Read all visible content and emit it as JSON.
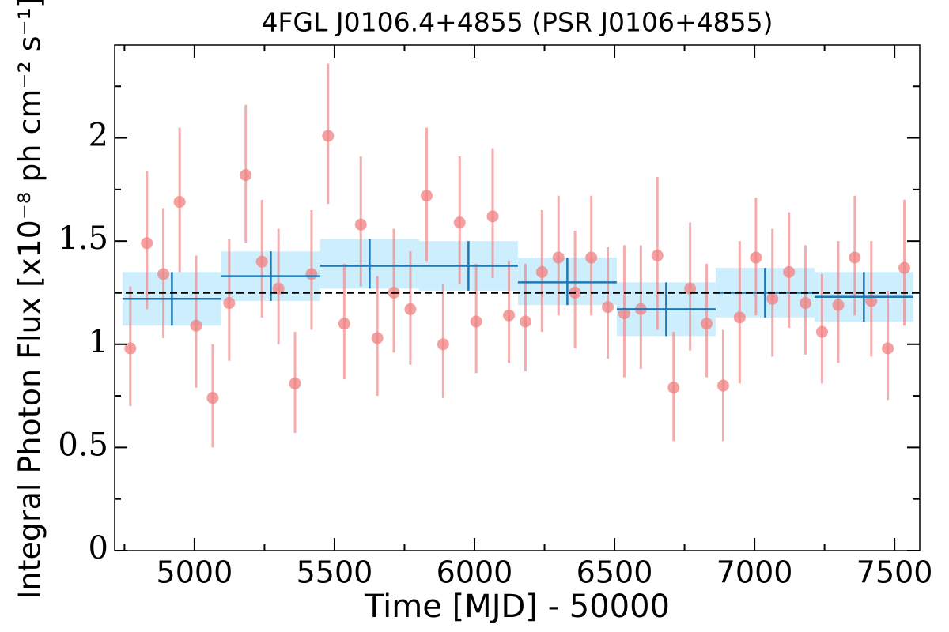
{
  "chart_data": {
    "type": "errorbar",
    "title": "4FGL J0106.4+4855 (PSR J0106+4855)",
    "xlabel": "Time [MJD] - 50000",
    "ylabel": "Integral Photon Flux [x10⁻⁸ ph cm⁻² s⁻¹]",
    "xlim": [
      4715,
      7590
    ],
    "ylim": [
      0,
      2.45
    ],
    "xticks": [
      5000,
      5500,
      6000,
      6500,
      7000,
      7500
    ],
    "xticks_minor": [
      4750,
      5250,
      5750,
      6250,
      6750,
      7250
    ],
    "yticks": [
      0,
      0.5,
      1,
      1.5,
      2
    ],
    "yticks_minor": [
      0.25,
      0.75,
      1.25,
      1.75,
      2.25
    ],
    "x": [
      4771,
      4830,
      4889,
      4947,
      5006,
      5065,
      5124,
      5183,
      5241,
      5300,
      5359,
      5418,
      5477,
      5535,
      5594,
      5653,
      5712,
      5771,
      5829,
      5888,
      5947,
      6006,
      6065,
      6123,
      6182,
      6241,
      6300,
      6359,
      6417,
      6476,
      6535,
      6594,
      6653,
      6711,
      6770,
      6829,
      6888,
      6947,
      7005,
      7064,
      7123,
      7182,
      7241,
      7299,
      7358,
      7417,
      7476,
      7535
    ],
    "values": [
      0.98,
      1.49,
      1.34,
      1.69,
      1.09,
      0.74,
      1.2,
      1.82,
      1.4,
      1.27,
      0.81,
      1.34,
      2.01,
      1.1,
      1.58,
      1.03,
      1.25,
      1.17,
      1.72,
      1.0,
      1.59,
      1.11,
      1.62,
      1.14,
      1.11,
      1.35,
      1.42,
      1.25,
      1.42,
      1.18,
      1.15,
      1.17,
      1.43,
      0.79,
      1.27,
      1.1,
      0.8,
      1.13,
      1.42,
      1.22,
      1.35,
      1.2,
      1.06,
      1.19,
      1.42,
      1.21,
      0.98,
      1.37
    ],
    "err_plus": [
      0.3,
      0.35,
      0.32,
      0.36,
      0.34,
      0.26,
      0.31,
      0.34,
      0.3,
      0.29,
      0.25,
      0.31,
      0.35,
      0.29,
      0.33,
      0.3,
      0.31,
      0.28,
      0.33,
      0.29,
      0.32,
      0.28,
      0.33,
      0.26,
      0.28,
      0.3,
      0.3,
      0.3,
      0.3,
      0.29,
      0.33,
      0.31,
      0.38,
      0.27,
      0.32,
      0.29,
      0.27,
      0.37,
      0.29,
      0.34,
      0.29,
      0.28,
      0.28,
      0.31,
      0.3,
      0.29,
      0.28,
      0.33
    ],
    "err_minus": [
      0.28,
      0.32,
      0.31,
      0.34,
      0.3,
      0.24,
      0.28,
      0.33,
      0.27,
      0.27,
      0.24,
      0.27,
      0.33,
      0.27,
      0.3,
      0.28,
      0.29,
      0.27,
      0.32,
      0.26,
      0.3,
      0.25,
      0.3,
      0.23,
      0.24,
      0.29,
      0.28,
      0.27,
      0.28,
      0.25,
      0.31,
      0.29,
      0.36,
      0.26,
      0.3,
      0.26,
      0.27,
      0.32,
      0.28,
      0.28,
      0.27,
      0.25,
      0.25,
      0.28,
      0.28,
      0.27,
      0.25,
      0.28
    ],
    "color": "#f08080",
    "bins": {
      "edges": [
        4743,
        5096,
        5449,
        5802,
        6155,
        6508,
        6861,
        7214,
        7567
      ],
      "values": [
        1.22,
        1.33,
        1.38,
        1.38,
        1.3,
        1.17,
        1.25,
        1.23
      ],
      "err_plus": [
        0.13,
        0.12,
        0.13,
        0.12,
        0.12,
        0.13,
        0.12,
        0.12
      ],
      "err_minus": [
        0.13,
        0.12,
        0.11,
        0.12,
        0.11,
        0.13,
        0.12,
        0.12
      ],
      "color": "#1f77b4",
      "band_color": "#cdeefd"
    },
    "mean": 1.25
  }
}
